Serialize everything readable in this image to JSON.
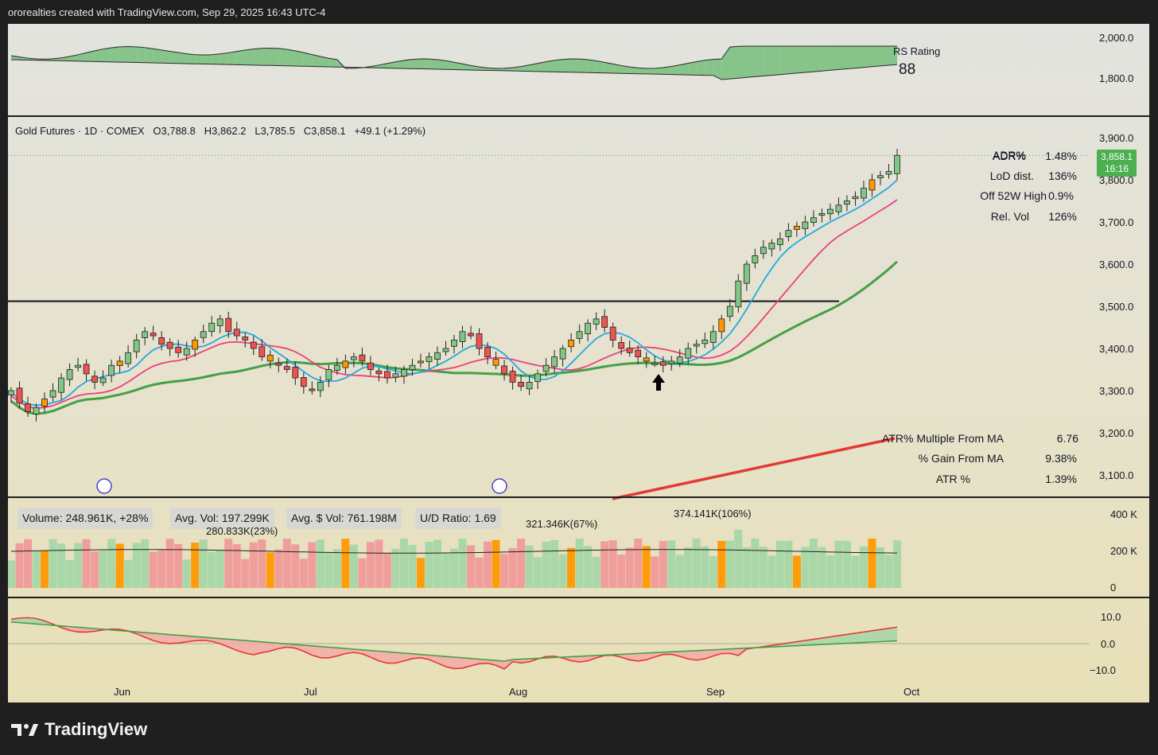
{
  "header": {
    "credit": "ororealties created with TradingView.com, Sep 29, 2025 16:43 UTC-4"
  },
  "rs_panel": {
    "label": "RS Rating",
    "value": "88",
    "ticks": [
      "2,000.0",
      "1,800.0"
    ]
  },
  "legend": {
    "symbol": "Gold Futures · 1D · COMEX",
    "open": "O3,788.8",
    "high": "H3,862.2",
    "low": "L3,785.5",
    "close": "C3,858.1",
    "change": "+49.1 (+1.29%)"
  },
  "price_axis": [
    "3,900.0",
    "3,800.0",
    "3,700.0",
    "3,600.0",
    "3,500.0",
    "3,400.0",
    "3,300.0",
    "3,200.0",
    "3,100.0"
  ],
  "price_badge": {
    "price": "3,858.1",
    "countdown": "16:16",
    "color": "#4caf50"
  },
  "stats_top": [
    {
      "label": "ADR%",
      "value": "1.48%"
    },
    {
      "label": "LoD dist.",
      "value": "136%"
    },
    {
      "label": "Off 52W High",
      "value": "0.9%"
    },
    {
      "label": "Rel. Vol",
      "value": "126%"
    }
  ],
  "stats_bottom": [
    {
      "label": "ATR% Multiple From MA",
      "value": "6.76"
    },
    {
      "label": "% Gain From MA",
      "value": "9.38%"
    },
    {
      "label": "ATR %",
      "value": "1.39%"
    }
  ],
  "volume_panel": {
    "volume": "Volume: 248.961K, +28%",
    "avg_vol": "Avg. Vol: 197.299K",
    "avg_dollar_vol": "Avg. $ Vol: 761.198M",
    "ud_ratio": "U/D Ratio: 1.69",
    "annotations": [
      "280.833K(23%)",
      "321.346K(67%)",
      "374.141K(106%)"
    ],
    "ticks": [
      "400 K",
      "200 K",
      "0"
    ]
  },
  "osc_panel": {
    "ticks": [
      "10.0",
      "0.0",
      "−10.0"
    ]
  },
  "time_axis": [
    "Jun",
    "Jul",
    "Aug",
    "Sep",
    "Oct"
  ],
  "footer": {
    "brand": "TradingView"
  },
  "chart_data": {
    "type": "candlestick",
    "resistance_level": 3512,
    "ylim": [
      3060,
      3930
    ],
    "colors": {
      "up": "#81c784",
      "down": "#ef5350",
      "inside": "#ff9800",
      "ema10": "#26a9e0",
      "ema21": "#ec407a",
      "sma50": "#43a047",
      "sma200": "#e53935"
    },
    "closes": [
      3300,
      3270,
      3250,
      3260,
      3280,
      3300,
      3330,
      3350,
      3360,
      3340,
      3320,
      3330,
      3360,
      3370,
      3390,
      3420,
      3440,
      3430,
      3410,
      3400,
      3390,
      3400,
      3420,
      3440,
      3460,
      3470,
      3440,
      3430,
      3420,
      3400,
      3380,
      3370,
      3360,
      3350,
      3330,
      3310,
      3300,
      3320,
      3350,
      3360,
      3370,
      3380,
      3370,
      3350,
      3340,
      3330,
      3340,
      3350,
      3360,
      3370,
      3380,
      3390,
      3400,
      3420,
      3440,
      3430,
      3400,
      3380,
      3360,
      3340,
      3320,
      3310,
      3320,
      3340,
      3360,
      3380,
      3400,
      3420,
      3440,
      3460,
      3470,
      3450,
      3420,
      3400,
      3390,
      3380,
      3370,
      3365,
      3360,
      3370,
      3380,
      3400,
      3410,
      3420,
      3440,
      3470,
      3500,
      3560,
      3600,
      3620,
      3640,
      3650,
      3660,
      3680,
      3690,
      3700,
      3710,
      3720,
      3730,
      3740,
      3750,
      3760,
      3780,
      3800,
      3810,
      3820,
      3858
    ]
  }
}
